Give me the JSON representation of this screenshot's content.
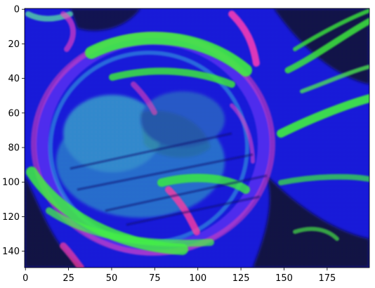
{
  "chart_data": {
    "type": "heatmap",
    "subtype": "image (imshow, false-color RGB)",
    "title": "",
    "xlabel": "",
    "ylabel": "",
    "xlim": [
      -0.5,
      199.5
    ],
    "ylim": [
      149.5,
      -0.5
    ],
    "y_axis_inverted": true,
    "x_ticks": [
      0,
      25,
      50,
      75,
      100,
      125,
      150,
      175
    ],
    "y_ticks": [
      0,
      20,
      40,
      60,
      80,
      100,
      120,
      140
    ],
    "image_size": {
      "columns": 200,
      "rows": 150
    },
    "grid": false,
    "legend": "none",
    "colorbar": false,
    "colors": {
      "dominant_blue": "#1414e6",
      "dark_navy": "#050532",
      "bright_green": "#3cf03c",
      "magenta": "#e63cb4",
      "cyan": "#3cc8c8",
      "violet": "#7828dc"
    },
    "content_description_hint": "abstract false-color image; large ring shape centered near column 90, row 78"
  }
}
